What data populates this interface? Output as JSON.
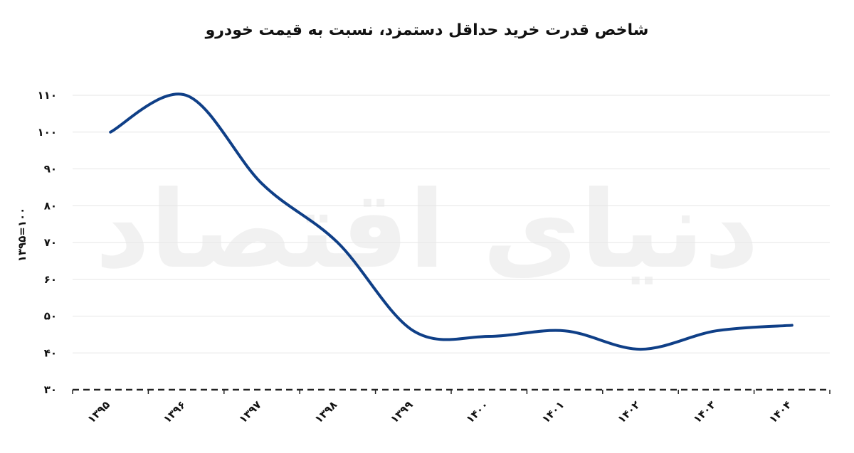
{
  "chart_data": {
    "type": "line",
    "title": "شاخص قدرت خرید حداقل دستمزد، نسبت به قیمت خودرو",
    "ylabel": "۱۳۹۵=۱۰۰",
    "xlabel": "",
    "categories": [
      "۱۳۹۵",
      "۱۳۹۶",
      "۱۳۹۷",
      "۱۳۹۸",
      "۱۳۹۹",
      "۱۴۰۰",
      "۱۴۰۱",
      "۱۴۰۲",
      "۱۴۰۳",
      "۱۴۰۴"
    ],
    "series": [
      {
        "values": [
          100,
          110,
          86,
          70,
          46,
          44.5,
          46,
          41,
          46,
          47.5
        ]
      }
    ],
    "ylim": [
      30,
      110
    ],
    "yticks": [
      30,
      40,
      50,
      60,
      70,
      80,
      90,
      100,
      110
    ],
    "ytick_labels": [
      "۳۰",
      "۴۰",
      "۵۰",
      "۶۰",
      "۷۰",
      "۸۰",
      "۹۰",
      "۱۰۰",
      "۱۱۰"
    ],
    "grid": true,
    "line_color": "#0f3f87",
    "grid_color": "#e6e6e6",
    "axis_color": "#222222"
  },
  "watermark": "دنیای اقتصاد"
}
